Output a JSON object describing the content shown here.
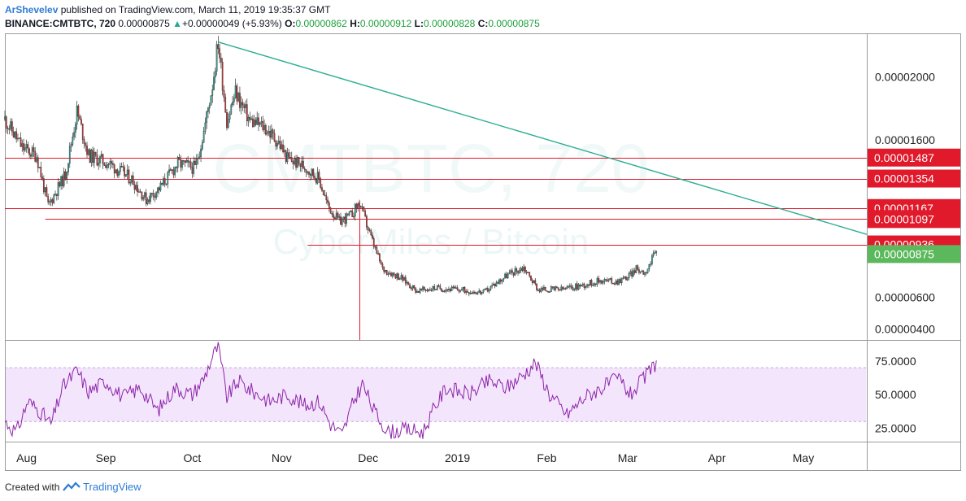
{
  "header": {
    "author": "ArShevelev",
    "published_text": "published on TradingView.com, March 11, 2019 19:35:37 GMT",
    "symbol": "BINANCE:CMTBTC, 720",
    "last": "0.00000875",
    "change": "+0.00000049 (+5.93%)",
    "o_label": "O:",
    "o_value": "0.00000862",
    "h_label": "H:",
    "h_value": "0.00000912",
    "l_label": "L:",
    "l_value": "0.00000828",
    "c_label": "C:",
    "c_value": "0.00000875"
  },
  "watermark": {
    "symbol": "CMTBTC, 720",
    "description": "CyberMiles / Bitcoin"
  },
  "footer": {
    "created_with": "Created with",
    "brand": "TradingView"
  },
  "colors": {
    "up": "#26a69a",
    "down": "#d32f2f",
    "level_line": "#e0192b",
    "trend_line": "#2bae92",
    "rsi_line": "#8e24aa",
    "rsi_band": "#f3e5fc",
    "last_price_label": "#5cb85c",
    "level_label": "#e0192b"
  },
  "chart_data": {
    "type": "candlestick",
    "price_axis": {
      "ticks": [
        "0.00002000",
        "0.00001600",
        "0.00000600",
        "0.00000400"
      ],
      "ylim": [
        3.3e-06,
        2.27e-05
      ]
    },
    "time_axis": {
      "labels": [
        "Aug",
        "Sep",
        "Oct",
        "Nov",
        "Dec",
        "2019",
        "Feb",
        "Mar",
        "Apr",
        "May"
      ],
      "xlim": [
        "2018-07-28",
        "2019-05-23"
      ]
    },
    "horizontal_levels": [
      {
        "price": 1.487e-05,
        "label": "0.00001487",
        "from": "2018-07-28"
      },
      {
        "price": 1.354e-05,
        "label": "0.00001354",
        "from": "2018-07-28"
      },
      {
        "price": 1.167e-05,
        "label": "0.00001167",
        "from": "2018-07-28"
      },
      {
        "price": 1.097e-05,
        "label": "0.00001097",
        "from": "2018-08-11"
      },
      {
        "price": 9.36e-06,
        "label": "0.00000936",
        "from": "2018-11-10"
      }
    ],
    "last_price": {
      "price": 8.75e-06,
      "label": "0.00000875"
    },
    "trend_line": {
      "start": [
        "2018-10-10",
        2.22e-05
      ],
      "end": [
        "2019-05-23",
        1e-05
      ]
    },
    "vertical_marker": {
      "date": "2018-11-28",
      "from_price": 1.21e-05,
      "to_price": 3.3e-06
    },
    "price_path": [
      [
        "2018-07-28",
        1.73e-05
      ],
      [
        "2018-08-03",
        1.55e-05
      ],
      [
        "2018-08-08",
        1.5e-05
      ],
      [
        "2018-08-12",
        1.18e-05
      ],
      [
        "2018-08-18",
        1.38e-05
      ],
      [
        "2018-08-22",
        1.78e-05
      ],
      [
        "2018-08-26",
        1.5e-05
      ],
      [
        "2018-09-02",
        1.45e-05
      ],
      [
        "2018-09-10",
        1.35e-05
      ],
      [
        "2018-09-15",
        1.22e-05
      ],
      [
        "2018-09-20",
        1.3e-05
      ],
      [
        "2018-09-26",
        1.45e-05
      ],
      [
        "2018-10-02",
        1.42e-05
      ],
      [
        "2018-10-05",
        1.65e-05
      ],
      [
        "2018-10-08",
        1.95e-05
      ],
      [
        "2018-10-10",
        2.22e-05
      ],
      [
        "2018-10-13",
        1.72e-05
      ],
      [
        "2018-10-16",
        1.9e-05
      ],
      [
        "2018-10-21",
        1.72e-05
      ],
      [
        "2018-10-26",
        1.68e-05
      ],
      [
        "2018-10-31",
        1.58e-05
      ],
      [
        "2018-11-03",
        1.48e-05
      ],
      [
        "2018-11-09",
        1.43e-05
      ],
      [
        "2018-11-14",
        1.35e-05
      ],
      [
        "2018-11-17",
        1.18e-05
      ],
      [
        "2018-11-21",
        1.08e-05
      ],
      [
        "2018-11-25",
        1.12e-05
      ],
      [
        "2018-11-28",
        1.2e-05
      ],
      [
        "2018-12-02",
        9.8e-06
      ],
      [
        "2018-12-06",
        7.8e-06
      ],
      [
        "2018-12-12",
        7.3e-06
      ],
      [
        "2018-12-18",
        6.4e-06
      ],
      [
        "2018-12-24",
        6.6e-06
      ],
      [
        "2019-01-01",
        6.5e-06
      ],
      [
        "2019-01-10",
        6.3e-06
      ],
      [
        "2019-01-18",
        7.4e-06
      ],
      [
        "2019-01-24",
        7.9e-06
      ],
      [
        "2019-01-29",
        6.5e-06
      ],
      [
        "2019-02-06",
        6.5e-06
      ],
      [
        "2019-02-14",
        6.8e-06
      ],
      [
        "2019-02-20",
        7.1e-06
      ],
      [
        "2019-02-25",
        7e-06
      ],
      [
        "2019-03-01",
        7.3e-06
      ],
      [
        "2019-03-04",
        7.8e-06
      ],
      [
        "2019-03-07",
        7.6e-06
      ],
      [
        "2019-03-09",
        8.2e-06
      ],
      [
        "2019-03-11",
        9e-06
      ]
    ],
    "rsi": {
      "ticks": [
        "75.0000",
        "50.0000",
        "25.0000"
      ],
      "ylim": [
        15,
        90
      ],
      "band": [
        30,
        70
      ],
      "path": [
        [
          "2018-07-28",
          30
        ],
        [
          "2018-08-01",
          22
        ],
        [
          "2018-08-05",
          45
        ],
        [
          "2018-08-09",
          38
        ],
        [
          "2018-08-13",
          28
        ],
        [
          "2018-08-17",
          55
        ],
        [
          "2018-08-22",
          68
        ],
        [
          "2018-08-26",
          52
        ],
        [
          "2018-09-01",
          60
        ],
        [
          "2018-09-07",
          48
        ],
        [
          "2018-09-13",
          55
        ],
        [
          "2018-09-19",
          38
        ],
        [
          "2018-09-25",
          55
        ],
        [
          "2018-10-01",
          50
        ],
        [
          "2018-10-05",
          62
        ],
        [
          "2018-10-08",
          78
        ],
        [
          "2018-10-10",
          86
        ],
        [
          "2018-10-13",
          48
        ],
        [
          "2018-10-17",
          60
        ],
        [
          "2018-10-22",
          52
        ],
        [
          "2018-10-28",
          45
        ],
        [
          "2018-11-03",
          50
        ],
        [
          "2018-11-09",
          42
        ],
        [
          "2018-11-14",
          45
        ],
        [
          "2018-11-18",
          28
        ],
        [
          "2018-11-22",
          20
        ],
        [
          "2018-11-26",
          45
        ],
        [
          "2018-11-29",
          58
        ],
        [
          "2018-12-03",
          38
        ],
        [
          "2018-12-08",
          22
        ],
        [
          "2018-12-14",
          24
        ],
        [
          "2018-12-20",
          22
        ],
        [
          "2018-12-24",
          40
        ],
        [
          "2018-12-28",
          55
        ],
        [
          "2019-01-05",
          50
        ],
        [
          "2019-01-12",
          60
        ],
        [
          "2019-01-18",
          55
        ],
        [
          "2019-01-24",
          65
        ],
        [
          "2019-01-28",
          74
        ],
        [
          "2019-02-02",
          50
        ],
        [
          "2019-02-08",
          35
        ],
        [
          "2019-02-14",
          48
        ],
        [
          "2019-02-20",
          55
        ],
        [
          "2019-02-26",
          62
        ],
        [
          "2019-03-02",
          50
        ],
        [
          "2019-03-06",
          60
        ],
        [
          "2019-03-11",
          74
        ]
      ]
    }
  }
}
